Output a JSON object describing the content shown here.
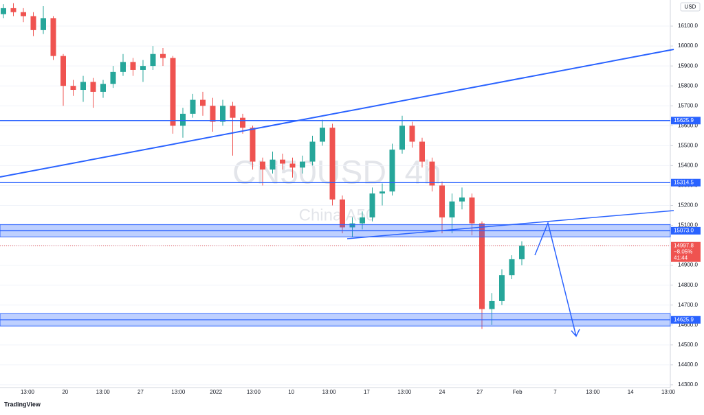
{
  "chart_data": {
    "type": "candlestick",
    "watermark": "CN50USD, 4h",
    "watermark_sub": "China A50",
    "currency": "USD",
    "brand": "TradingView",
    "up_color": "#26a69a",
    "down_color": "#ef5350",
    "level_color": "#2962ff",
    "ylim": [
      14286,
      16231
    ],
    "yticks": [
      {
        "value": 14300,
        "label": "14300.0"
      },
      {
        "value": 14400,
        "label": "14400.0"
      },
      {
        "value": 14500,
        "label": "14500.0"
      },
      {
        "value": 14600,
        "label": "14600.0"
      },
      {
        "value": 14700,
        "label": "14700.0"
      },
      {
        "value": 14800,
        "label": "14800.0"
      },
      {
        "value": 14900,
        "label": "14900.0"
      },
      {
        "value": 15000,
        "label": "15000.0"
      },
      {
        "value": 15100,
        "label": "15100.0"
      },
      {
        "value": 15200,
        "label": "15200.0"
      },
      {
        "value": 15300,
        "label": "15300.0"
      },
      {
        "value": 15400,
        "label": "15400.0"
      },
      {
        "value": 15500,
        "label": "15500.0"
      },
      {
        "value": 15600,
        "label": "15600.0"
      },
      {
        "value": 15700,
        "label": "15700.0"
      },
      {
        "value": 15800,
        "label": "15800.0"
      },
      {
        "value": 15900,
        "label": "15900.0"
      },
      {
        "value": 16000,
        "label": "16000.0"
      },
      {
        "value": 16100,
        "label": "16100.0"
      }
    ],
    "time_labels": [
      "13:00",
      "20",
      "13:00",
      "27",
      "13:00",
      "2022",
      "13:00",
      "10",
      "13:00",
      "17",
      "13:00",
      "24",
      "27",
      "Feb",
      "7",
      "13:00",
      "14",
      "13:00"
    ],
    "open": [
      16160,
      16190,
      16170,
      16150,
      16080,
      16140,
      15950,
      15800,
      15780,
      15820,
      15770,
      15810,
      15870,
      15920,
      15880,
      15900,
      15960,
      15940,
      15600,
      15660,
      15730,
      15700,
      15620,
      15700,
      15640,
      15590,
      15420,
      15380,
      15430,
      15410,
      15390,
      15420,
      15520,
      15590,
      15230,
      15090,
      15110,
      15140,
      15260,
      15270,
      15480,
      15600,
      15520,
      15420,
      15300,
      15140,
      15220,
      15240,
      15110,
      14680,
      14720,
      14850,
      14930
    ],
    "high": [
      16210,
      16215,
      16190,
      16170,
      16200,
      16150,
      15960,
      15830,
      15850,
      15840,
      15830,
      15900,
      15960,
      15940,
      15930,
      16000,
      15990,
      15950,
      15690,
      15760,
      15770,
      15740,
      15730,
      15720,
      15660,
      15600,
      15440,
      15470,
      15460,
      15440,
      15450,
      15550,
      15630,
      15610,
      15250,
      15140,
      15170,
      15290,
      15310,
      15510,
      15650,
      15620,
      15540,
      15440,
      15320,
      15260,
      15290,
      15260,
      15120,
      14760,
      14880,
      14950,
      15020
    ],
    "low": [
      16140,
      16150,
      16120,
      16050,
      16060,
      15930,
      15700,
      15750,
      15720,
      15690,
      15740,
      15790,
      15850,
      15850,
      15820,
      15880,
      15900,
      15560,
      15540,
      15640,
      15650,
      15570,
      15600,
      15450,
      15560,
      15380,
      15300,
      15360,
      15380,
      15340,
      15360,
      15400,
      15500,
      15200,
      15060,
      15040,
      15080,
      15120,
      15200,
      15250,
      15460,
      15490,
      15390,
      15270,
      15060,
      15060,
      15180,
      15050,
      14580,
      14600,
      14700,
      14830,
      14900
    ],
    "close": [
      16190,
      16170,
      16150,
      16080,
      16140,
      15950,
      15800,
      15780,
      15820,
      15770,
      15810,
      15870,
      15920,
      15880,
      15900,
      15960,
      15940,
      15600,
      15660,
      15730,
      15700,
      15620,
      15700,
      15640,
      15590,
      15420,
      15380,
      15430,
      15410,
      15390,
      15420,
      15520,
      15590,
      15230,
      15090,
      15110,
      15140,
      15260,
      15270,
      15480,
      15600,
      15520,
      15420,
      15300,
      15140,
      15220,
      15240,
      15110,
      14680,
      14720,
      14850,
      14930,
      14997.8
    ],
    "change_label": "−8.05%",
    "timer": "41:44",
    "levels": [
      {
        "value": 15625.9
      },
      {
        "value": 15314.5
      },
      {
        "value": 15073,
        "label": "15073.0",
        "zone": true
      },
      {
        "value": 14625.9,
        "zone": true
      }
    ]
  }
}
